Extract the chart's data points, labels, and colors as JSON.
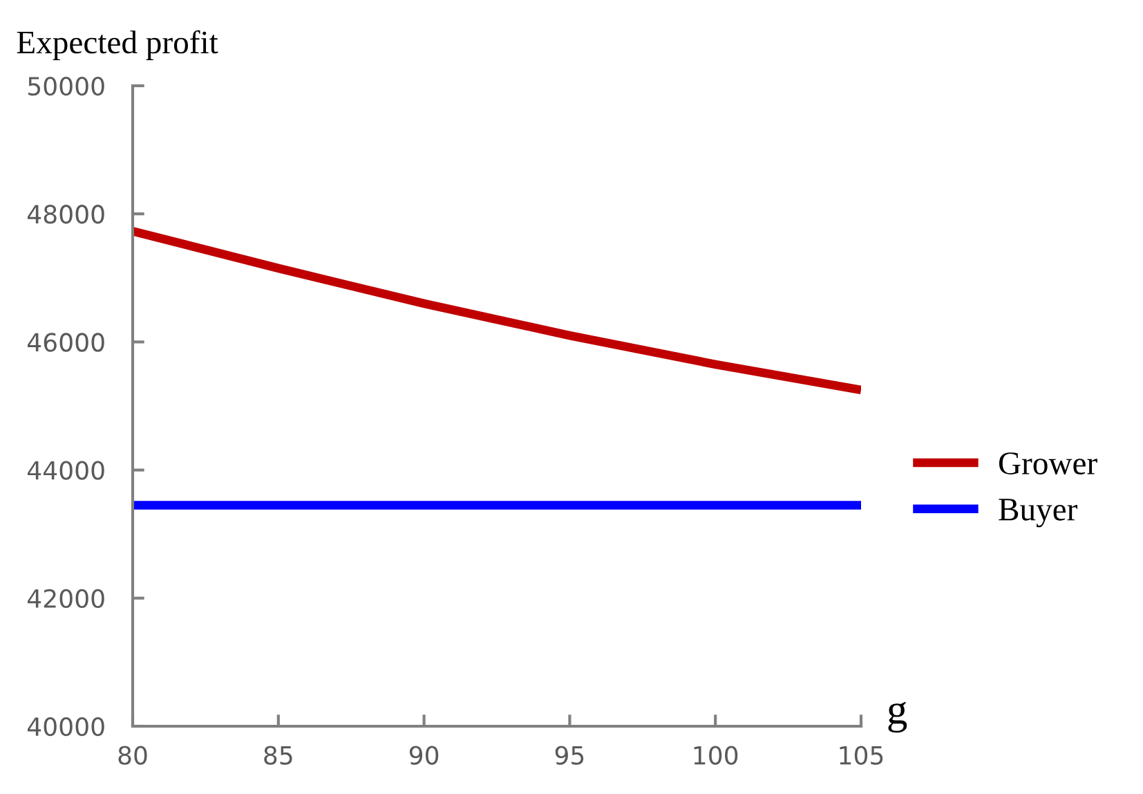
{
  "chart_data": {
    "type": "line",
    "ylabel": "Expected profit",
    "xlabel": "g",
    "x": [
      80,
      85,
      90,
      95,
      100,
      105
    ],
    "series": [
      {
        "name": "Grower",
        "color": "#c00000",
        "values": [
          47730,
          47150,
          46600,
          46100,
          45650,
          45250
        ]
      },
      {
        "name": "Buyer",
        "color": "#0000ff",
        "values": [
          43450,
          43450,
          43450,
          43450,
          43450,
          43450
        ]
      }
    ],
    "xlim": [
      80,
      105
    ],
    "xticks": [
      80,
      85,
      90,
      95,
      100,
      105
    ],
    "ylim": [
      40000,
      50000
    ],
    "yticks": [
      40000,
      42000,
      44000,
      46000,
      48000,
      50000
    ],
    "grid": false,
    "legend": "right",
    "marker": "none",
    "line_style": "solid"
  }
}
